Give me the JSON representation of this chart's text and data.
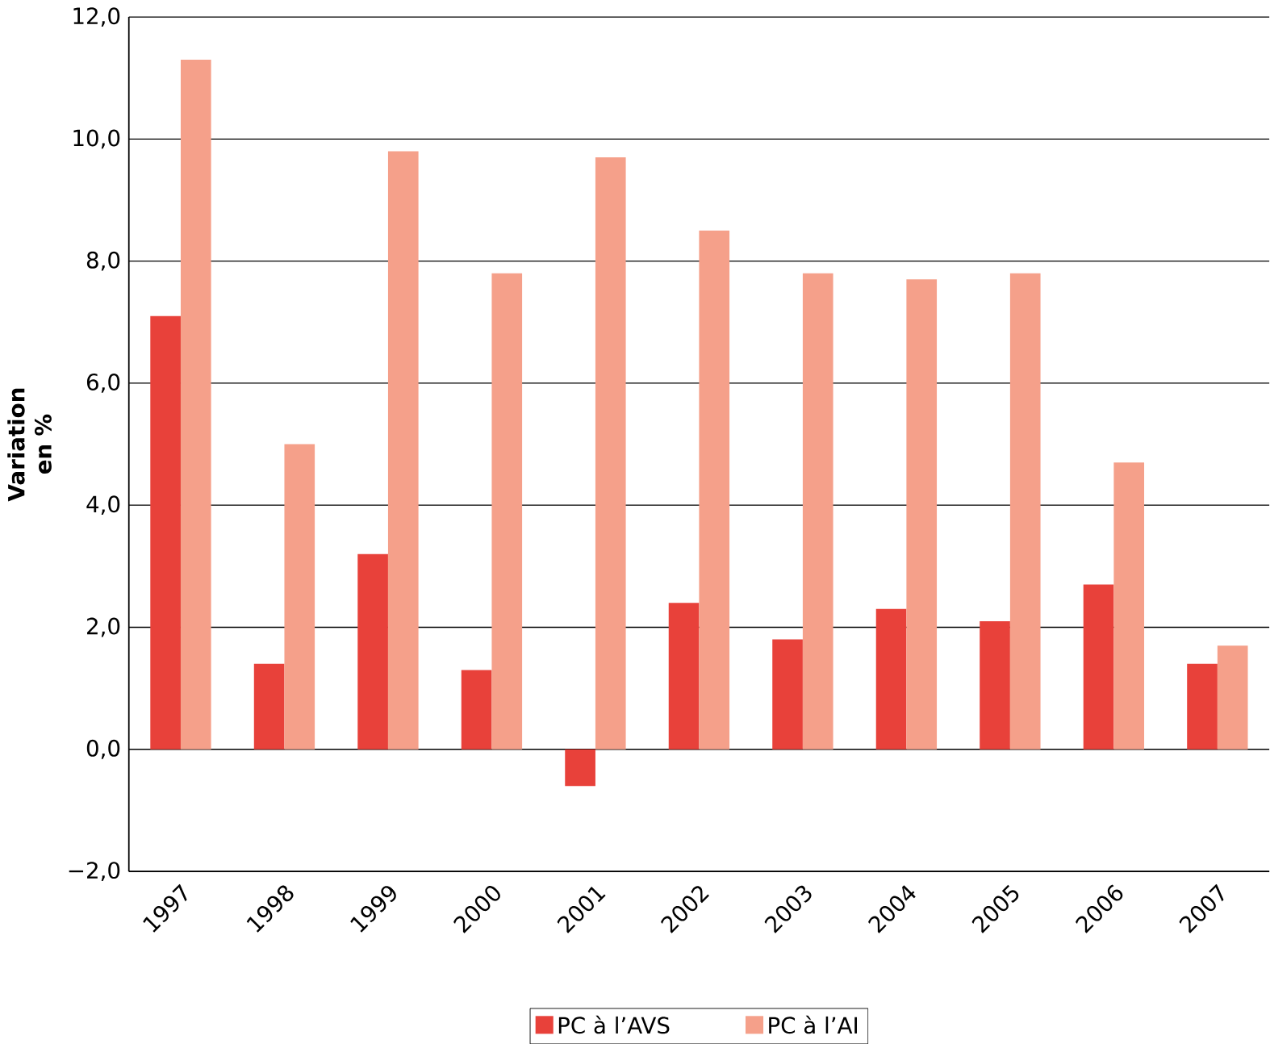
{
  "chart_data": {
    "type": "bar",
    "ylabel": "Variation en %",
    "categories": [
      "1997",
      "1998",
      "1999",
      "2000",
      "2001",
      "2002",
      "2003",
      "2004",
      "2005",
      "2006",
      "2007"
    ],
    "series": [
      {
        "name": "PC à l’AVS",
        "color": "#e8413a",
        "values": [
          7.1,
          1.4,
          3.2,
          1.3,
          -0.6,
          2.4,
          1.8,
          2.3,
          2.1,
          2.7,
          1.4
        ]
      },
      {
        "name": "PC à l’AI",
        "color": "#f5a08a",
        "values": [
          11.3,
          5.0,
          9.8,
          7.8,
          9.7,
          8.5,
          7.8,
          7.7,
          7.8,
          4.7,
          1.7
        ]
      }
    ],
    "ylim": [
      -2,
      12
    ],
    "yticks": [
      {
        "value": -2,
        "label": "−2,0"
      },
      {
        "value": 0,
        "label": "0,0"
      },
      {
        "value": 2,
        "label": "2,0"
      },
      {
        "value": 4,
        "label": "4,0"
      },
      {
        "value": 6,
        "label": "6,0"
      },
      {
        "value": 8,
        "label": "8,0"
      },
      {
        "value": 10,
        "label": "10,0"
      },
      {
        "value": 12,
        "label": "12,0"
      }
    ],
    "grid": "y",
    "legend": "bottom"
  }
}
